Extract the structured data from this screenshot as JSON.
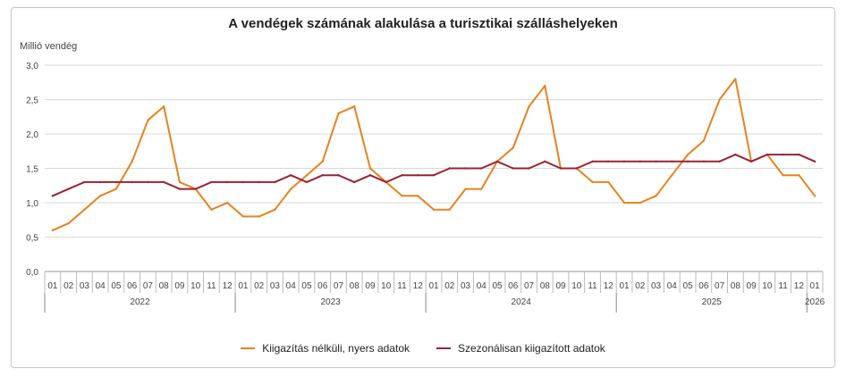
{
  "chart_data": {
    "type": "line",
    "title": "A vendégek számának alakulása a turisztikai szálláshelyeken",
    "ylabel": "Millió vendég",
    "ylim": [
      0,
      3
    ],
    "yticks": [
      "0,0",
      "0,5",
      "1,0",
      "1,5",
      "2,0",
      "2,5",
      "3,0"
    ],
    "ytick_values": [
      0,
      0.5,
      1,
      1.5,
      2,
      2.5,
      3
    ],
    "categories": [
      "01",
      "02",
      "03",
      "04",
      "05",
      "06",
      "07",
      "08",
      "09",
      "10",
      "11",
      "12",
      "01",
      "02",
      "03",
      "04",
      "05",
      "06",
      "07",
      "08",
      "09",
      "10",
      "11",
      "12",
      "01",
      "02",
      "03",
      "04",
      "05",
      "06",
      "07",
      "08",
      "09",
      "10",
      "11",
      "12",
      "01",
      "02",
      "03",
      "04",
      "05",
      "06",
      "07",
      "08",
      "09",
      "10",
      "11",
      "12",
      "01"
    ],
    "years": [
      {
        "label": "2022",
        "start": 0,
        "end": 11
      },
      {
        "label": "2023",
        "start": 12,
        "end": 23
      },
      {
        "label": "2024",
        "start": 24,
        "end": 35
      },
      {
        "label": "2025",
        "start": 36,
        "end": 47
      },
      {
        "label": "2026",
        "start": 48,
        "end": 48
      }
    ],
    "series": [
      {
        "name": "Kiigazítás nélküli, nyers adatok",
        "color": "#e8821e",
        "values": [
          0.6,
          0.7,
          0.9,
          1.1,
          1.2,
          1.6,
          2.2,
          2.4,
          1.3,
          1.2,
          0.9,
          1.0,
          0.8,
          0.8,
          0.9,
          1.2,
          1.4,
          1.6,
          2.3,
          2.4,
          1.5,
          1.3,
          1.1,
          1.1,
          0.9,
          0.9,
          1.2,
          1.2,
          1.6,
          1.8,
          2.4,
          2.7,
          1.5,
          1.5,
          1.3,
          1.3,
          1.0,
          1.0,
          1.1,
          1.4,
          1.7,
          1.9,
          2.5,
          2.8,
          1.6,
          1.7,
          1.4,
          1.4,
          1.1
        ]
      },
      {
        "name": "Szezonálisan kiigazított adatok",
        "color": "#9b2335",
        "values": [
          1.1,
          1.2,
          1.3,
          1.3,
          1.3,
          1.3,
          1.3,
          1.3,
          1.2,
          1.2,
          1.3,
          1.3,
          1.3,
          1.3,
          1.3,
          1.4,
          1.3,
          1.4,
          1.4,
          1.3,
          1.4,
          1.3,
          1.4,
          1.4,
          1.4,
          1.5,
          1.5,
          1.5,
          1.6,
          1.5,
          1.5,
          1.6,
          1.5,
          1.5,
          1.6,
          1.6,
          1.6,
          1.6,
          1.6,
          1.6,
          1.6,
          1.6,
          1.6,
          1.7,
          1.6,
          1.7,
          1.7,
          1.7,
          1.6
        ]
      }
    ],
    "grid": true,
    "legend_position": "bottom-center"
  }
}
